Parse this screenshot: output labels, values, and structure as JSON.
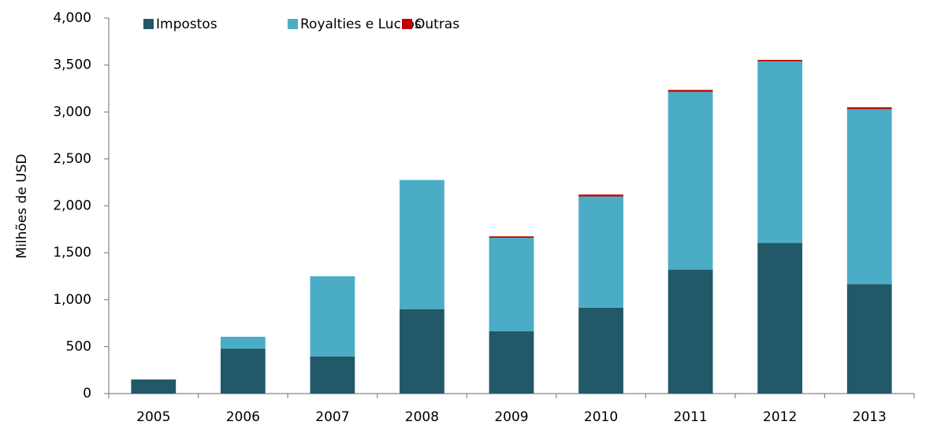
{
  "chart_data": {
    "type": "bar",
    "stacked": true,
    "y_axis_label": "Milhões de USD",
    "categories": [
      "2005",
      "2006",
      "2007",
      "2008",
      "2009",
      "2010",
      "2011",
      "2012",
      "2013"
    ],
    "series": [
      {
        "name": "Impostos",
        "color": "#215968",
        "values": [
          150,
          480,
          395,
          900,
          665,
          915,
          1320,
          1605,
          1165
        ]
      },
      {
        "name": "Royalties e Lucros",
        "color": "#4bacc6",
        "values": [
          0,
          125,
          855,
          1375,
          995,
          1185,
          1895,
          1935,
          1865
        ]
      },
      {
        "name": "Outras",
        "color": "#c00000",
        "values": [
          0,
          0,
          0,
          0,
          15,
          20,
          20,
          15,
          20
        ]
      }
    ],
    "ylim": [
      0,
      4000
    ],
    "yticks": [
      0,
      500,
      {
        "value": 1000,
        "label": "1,000"
      },
      {
        "value": 1500,
        "label": "1,500"
      },
      {
        "value": 2000,
        "label": "2,000"
      },
      {
        "value": 2500,
        "label": "2,500"
      },
      {
        "value": 3000,
        "label": "3,000"
      },
      {
        "value": 3500,
        "label": "3,500"
      },
      {
        "value": 4000,
        "label": "4,000"
      }
    ],
    "grid": false,
    "legend": "top"
  }
}
